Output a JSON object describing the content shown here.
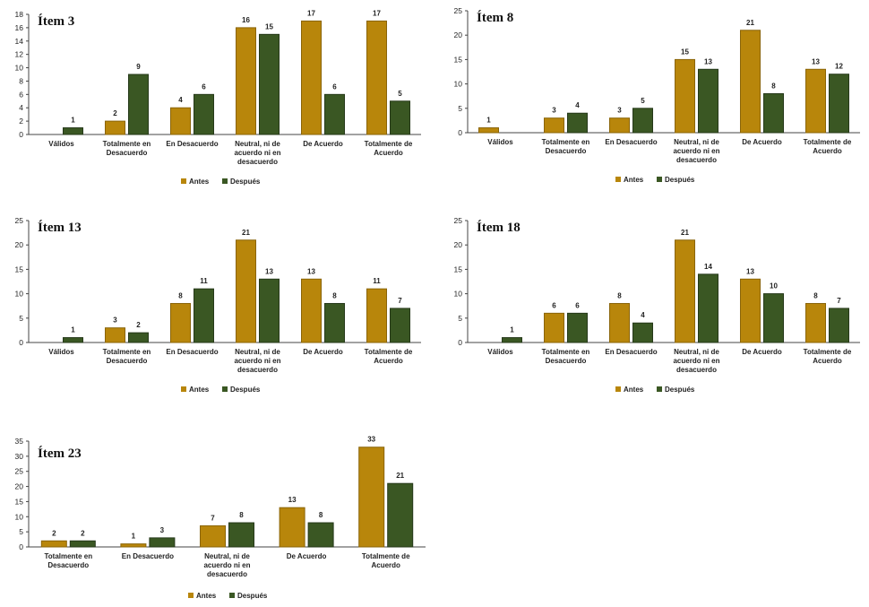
{
  "colors": {
    "antes": "#B8860B",
    "despues": "#3A5723",
    "axis": "#444444",
    "antes_stroke": "#8a6408",
    "despues_stroke": "#26391a"
  },
  "chart_data": [
    {
      "type": "bar",
      "title": "Ítem 3",
      "categories": [
        "Válidos",
        "Totalmente en Desacuerdo",
        "En Desacuerdo",
        "Neutral, ni de acuerdo ni en desacuerdo",
        "De Acuerdo",
        "Totalmente de Acuerdo"
      ],
      "series": [
        {
          "name": "Antes",
          "values": [
            null,
            2,
            4,
            16,
            17,
            17
          ]
        },
        {
          "name": "Después",
          "values": [
            1,
            9,
            6,
            15,
            6,
            5
          ]
        }
      ],
      "ylim": [
        0,
        18
      ],
      "yticks": [
        0,
        2,
        4,
        6,
        8,
        10,
        12,
        14,
        16,
        18
      ],
      "legend": "bottom-center"
    },
    {
      "type": "bar",
      "title": "Ítem 8",
      "categories": [
        "Válidos",
        "Totalmente en Desacuerdo",
        "En Desacuerdo",
        "Neutral, ni de acuerdo ni en desacuerdo",
        "De Acuerdo",
        "Totalmente de Acuerdo"
      ],
      "series": [
        {
          "name": "Antes",
          "values": [
            1,
            3,
            3,
            15,
            21,
            13
          ]
        },
        {
          "name": "Después",
          "values": [
            null,
            4,
            5,
            13,
            8,
            12
          ]
        }
      ],
      "ylim": [
        0,
        25
      ],
      "yticks": [
        0,
        5,
        10,
        15,
        20,
        25
      ],
      "legend": "bottom-center"
    },
    {
      "type": "bar",
      "title": "Ítem 13",
      "categories": [
        "Válidos",
        "Totalmente en Desacuerdo",
        "En Desacuerdo",
        "Neutral, ni de acuerdo ni en desacuerdo",
        "De Acuerdo",
        "Totalmente de Acuerdo"
      ],
      "series": [
        {
          "name": "Antes",
          "values": [
            null,
            3,
            8,
            21,
            13,
            11
          ]
        },
        {
          "name": "Después",
          "values": [
            1,
            2,
            11,
            13,
            8,
            7
          ]
        }
      ],
      "ylim": [
        0,
        25
      ],
      "yticks": [
        0,
        5,
        10,
        15,
        20,
        25
      ],
      "legend": "bottom-center"
    },
    {
      "type": "bar",
      "title": "Ítem 18",
      "categories": [
        "Válidos",
        "Totalmente en Desacuerdo",
        "En Desacuerdo",
        "Neutral, ni de acuerdo ni en desacuerdo",
        "De Acuerdo",
        "Totalmente de Acuerdo"
      ],
      "series": [
        {
          "name": "Antes",
          "values": [
            null,
            6,
            8,
            21,
            13,
            8
          ]
        },
        {
          "name": "Después",
          "values": [
            1,
            6,
            4,
            14,
            10,
            7
          ]
        }
      ],
      "ylim": [
        0,
        25
      ],
      "yticks": [
        0,
        5,
        10,
        15,
        20,
        25
      ],
      "legend": "bottom-center"
    },
    {
      "type": "bar",
      "title": "Ítem 23",
      "categories": [
        "Totalmente en Desacuerdo",
        "En Desacuerdo",
        "Neutral, ni de acuerdo ni en desacuerdo",
        "De Acuerdo",
        "Totalmente de Acuerdo"
      ],
      "series": [
        {
          "name": "Antes",
          "values": [
            2,
            1,
            7,
            13,
            33
          ]
        },
        {
          "name": "Después",
          "values": [
            2,
            3,
            8,
            8,
            21
          ]
        }
      ],
      "ylim": [
        0,
        35
      ],
      "yticks": [
        0,
        5,
        10,
        15,
        20,
        25,
        30,
        35
      ],
      "legend": "bottom-center"
    }
  ]
}
